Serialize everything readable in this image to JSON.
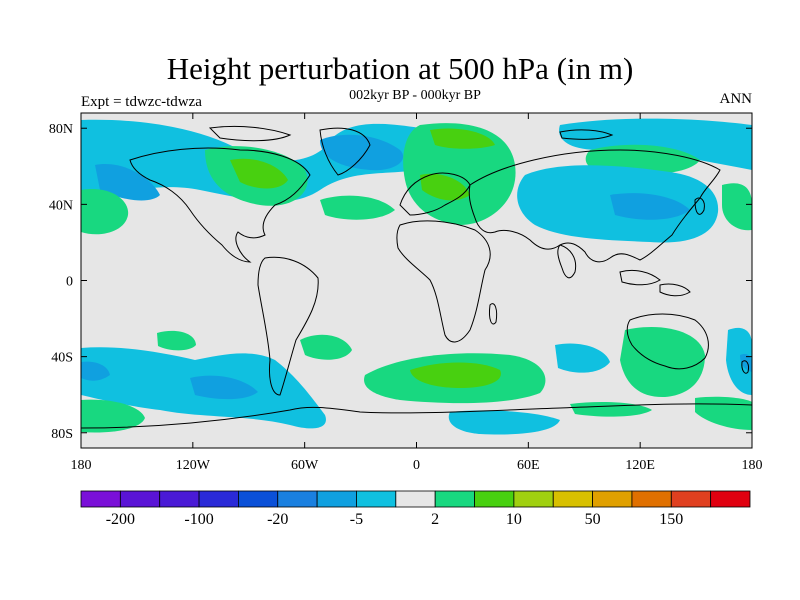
{
  "title": "Height perturbation at 500 hPa (in m)",
  "subtitle": "002kyr BP - 000kyr BP",
  "left_label": "Expt = tdwzc-tdwza",
  "right_label": "ANN",
  "lat_labels": [
    "80N",
    "40N",
    "0",
    "40S",
    "80S"
  ],
  "lon_labels": [
    "180",
    "120W",
    "60W",
    "0",
    "60E",
    "120E",
    "180"
  ],
  "colorbar": {
    "colors": [
      "#7a10d8",
      "#5a14d6",
      "#4a1ad6",
      "#2a2ad8",
      "#0a50d8",
      "#1a80e0",
      "#10a0e0",
      "#10c0e0",
      "#e6e6e6",
      "#18d880",
      "#48d010",
      "#a0d010",
      "#d8c000",
      "#e0a000",
      "#e07000",
      "#e04020",
      "#e00010"
    ],
    "labels": [
      "-200",
      "-100",
      "-20",
      "-5",
      "2",
      "10",
      "50",
      "150"
    ]
  },
  "colors": {
    "background": "#e6e6e6",
    "light_blue": "#10c0e0",
    "mid_blue": "#10a0e0",
    "green": "#18d880",
    "bright_green": "#48d010",
    "coast": "#000000"
  }
}
